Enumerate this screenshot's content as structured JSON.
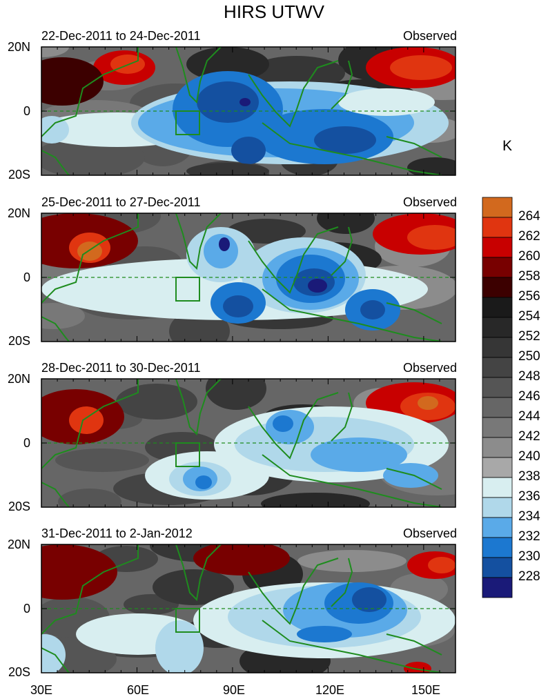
{
  "title": "HIRS UTWV",
  "unit": "K",
  "lat_labels": [
    "20N",
    "0",
    "20S"
  ],
  "lon_labels": [
    "30E",
    "60E",
    "90E",
    "120E",
    "150E"
  ],
  "panels": [
    {
      "date_range": "22-Dec-2011 to 24-Dec-2011",
      "label": "Observed"
    },
    {
      "date_range": "25-Dec-2011 to 27-Dec-2011",
      "label": "Observed"
    },
    {
      "date_range": "28-Dec-2011 to 30-Dec-2011",
      "label": "Observed"
    },
    {
      "date_range": "31-Dec-2011 to 2-Jan-2012",
      "label": "Observed"
    }
  ],
  "colorbar": {
    "labels": [
      "264",
      "262",
      "260",
      "258",
      "256",
      "254",
      "252",
      "250",
      "248",
      "246",
      "244",
      "242",
      "240",
      "238",
      "236",
      "234",
      "232",
      "230",
      "228"
    ],
    "colors": [
      "#d2691e",
      "#e03510",
      "#c80000",
      "#780000",
      "#3c0000",
      "#1a1a1a",
      "#282828",
      "#363636",
      "#444444",
      "#555555",
      "#666666",
      "#787878",
      "#8c8c8c",
      "#a8a8a8",
      "#d8eef0",
      "#b0d8ea",
      "#5aaae8",
      "#1c78d0",
      "#1450a0",
      "#1a1a78"
    ]
  }
}
